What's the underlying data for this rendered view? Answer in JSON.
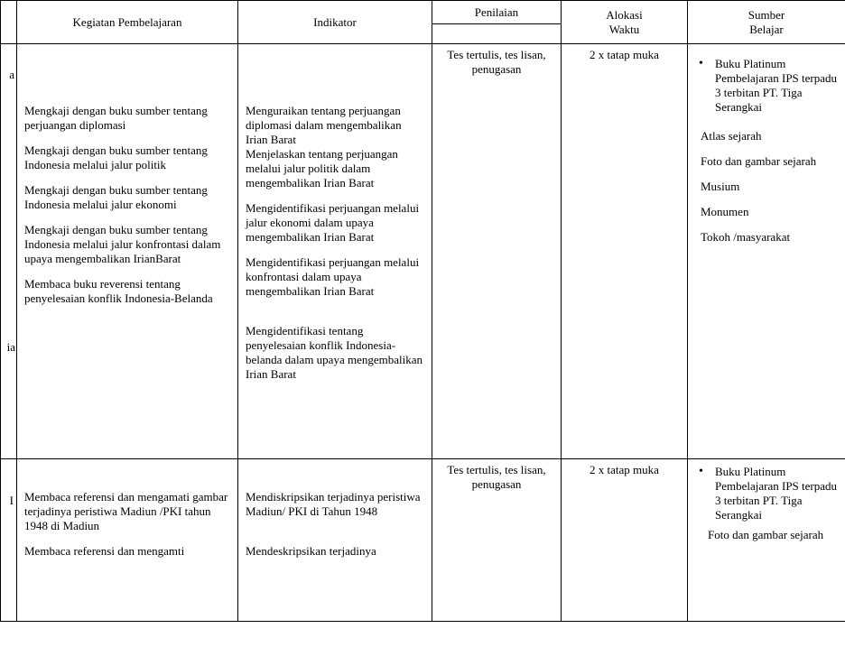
{
  "headers": {
    "kegiatan": "Kegiatan Pembelajaran",
    "indikator": "Indikator",
    "penilaian": "Penilaian",
    "alokasi": "Alokasi Waktu",
    "sumber": "Sumber Belajar"
  },
  "row1": {
    "left_fragment_top": "a",
    "left_fragment_bottom": "ia",
    "kegiatan": {
      "p1": "Mengkaji dengan buku sumber tentang perjuangan diplomasi",
      "p2": "Mengkaji dengan buku sumber tentang Indonesia melalui jalur politik",
      "p3": "Mengkaji dengan buku sumber tentang Indonesia melalui jalur ekonomi",
      "p4": "Mengkaji dengan buku sumber tentang Indonesia melalui jalur konfrontasi dalam upaya mengembalikan IrianBarat",
      "p5": "Membaca buku reverensi tentang penyelesaian konflik Indonesia-Belanda"
    },
    "indikator": {
      "p1": "Menguraikan tentang perjuangan diplomasi dalam  mengembalikan Irian Barat",
      "p2": "Menjelaskan  tentang perjuangan melalui jalur politik dalam mengembalikan Irian Barat",
      "p3": "Mengidentifikasi perjuangan melalui jalur ekonomi dalam upaya mengembalikan Irian Barat",
      "p4": "Mengidentifikasi perjuangan melalui konfrontasi dalam upaya mengembalikan Irian Barat",
      "p5": "Mengidentifikasi tentang penyelesaian konflik Indonesia-belanda dalam upaya mengembalikan Irian Barat"
    },
    "penilaian": "Tes tertulis, tes lisan, penugasan",
    "alokasi": "2 x tatap muka",
    "sumber": {
      "s1": "Buku Platinum Pembelajaran IPS terpadu 3 terbitan PT. Tiga Serangkai",
      "s2": "Atlas sejarah",
      "s3": "Foto dan gambar sejarah",
      "s4": "Musium",
      "s5": "Monumen",
      "s6": "Tokoh /masyarakat"
    }
  },
  "row2": {
    "left_fragment": "I",
    "kegiatan": {
      "p1": "Membaca referensi dan mengamati gambar terjadinya peristiwa Madiun /PKI  tahun 1948 di Madiun",
      "p2": "Membaca referensi dan mengamti"
    },
    "indikator": {
      "p1": "Mendiskripsikan terjadinya peristiwa Madiun/ PKI di Tahun 1948",
      "p2": "Mendeskripsikan terjadinya"
    },
    "penilaian": "Tes tertulis, tes lisan, penugasan",
    "alokasi": "2 x tatap muka",
    "sumber": {
      "s1": "Buku Platinum Pembelajaran IPS terpadu 3 terbitan PT. Tiga Serangkai",
      "s2": "Foto dan gambar sejarah"
    }
  }
}
